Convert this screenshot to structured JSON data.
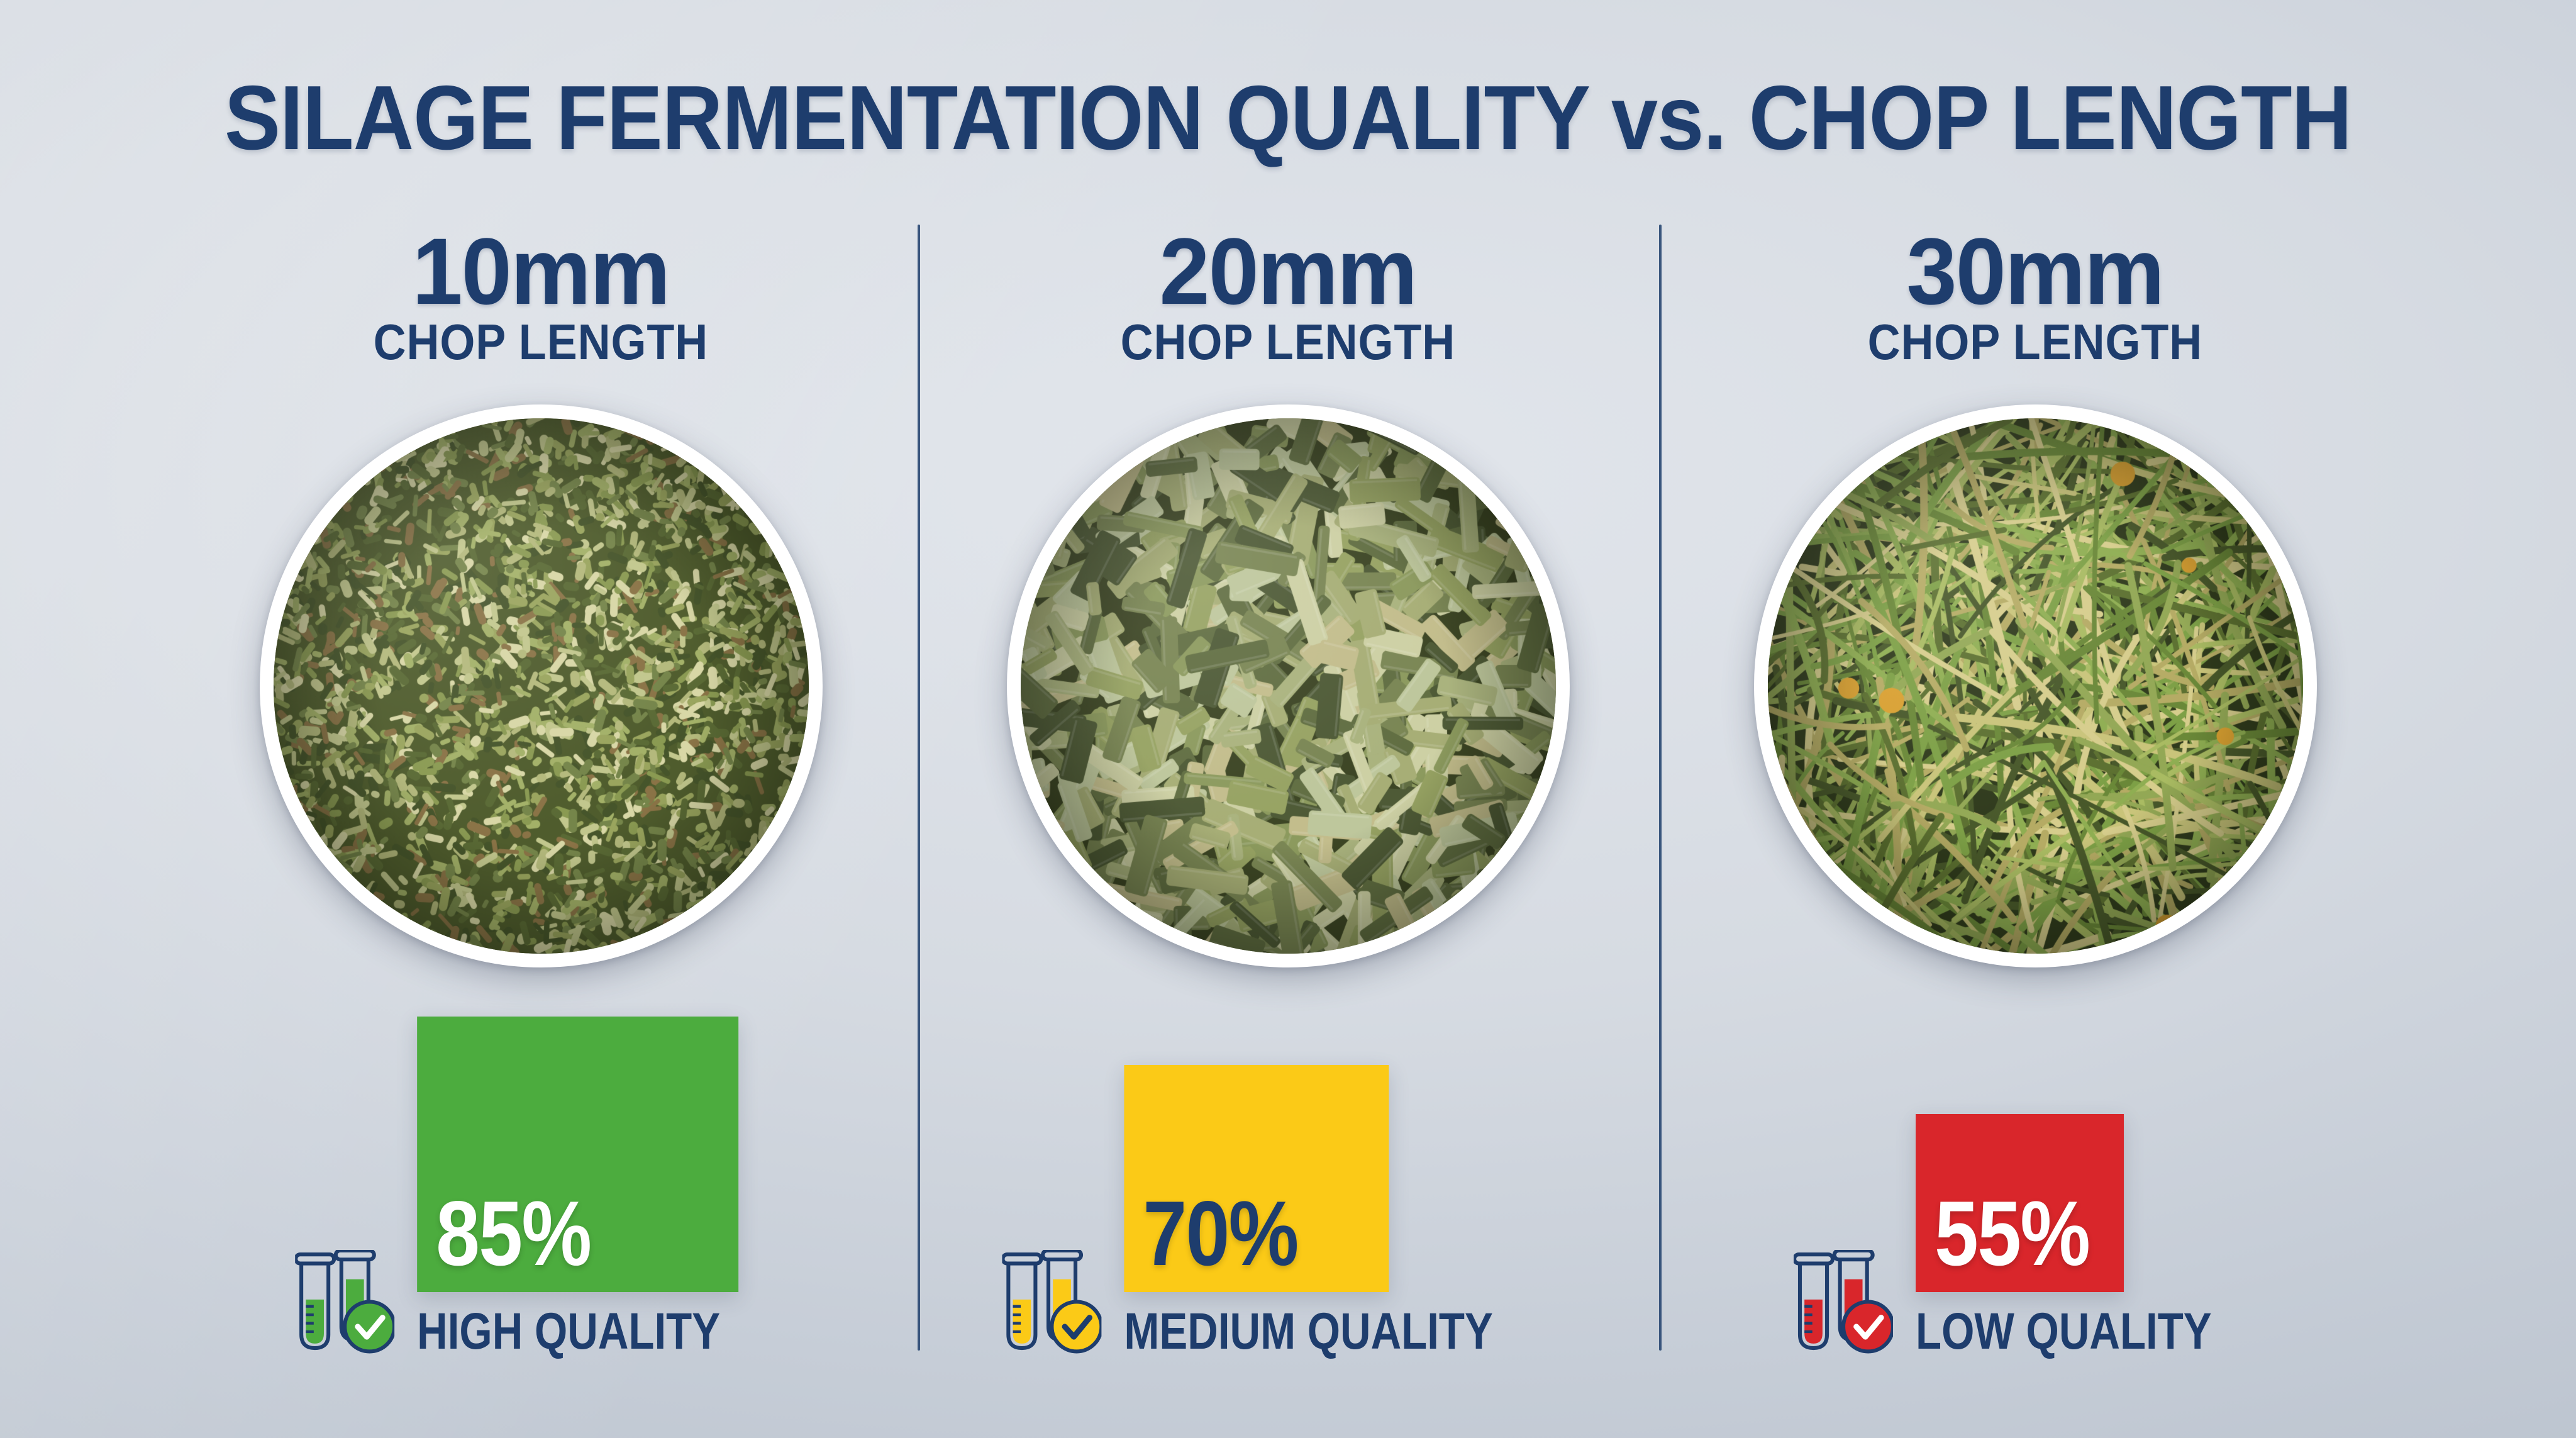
{
  "title": "SILAGE FERMENTATION QUALITY vs. CHOP LENGTH",
  "theme": {
    "navy": "#1e3d6d",
    "divider": "#2b4a74",
    "background_center": "#e2e6ec",
    "background_edge": "#b4bdc9",
    "circle_ring": "#ffffff"
  },
  "chart_data": {
    "type": "bar",
    "title": "SILAGE FERMENTATION QUALITY vs. CHOP LENGTH",
    "categories": [
      "10mm",
      "20mm",
      "30mm"
    ],
    "values": [
      85,
      70,
      55
    ],
    "unit": "%",
    "labels": [
      "HIGH QUALITY",
      "MEDIUM QUALITY",
      "LOW QUALITY"
    ],
    "bar_colors": [
      "#4cac3e",
      "#fbca17",
      "#d9262b"
    ],
    "ylim": [
      0,
      100
    ]
  },
  "columns": [
    {
      "chop_length": "10mm",
      "chop_caption": "CHOP LENGTH",
      "percent": 85,
      "percent_label": "85%",
      "quality_label": "HIGH QUALITY",
      "accent": "#4cac3e",
      "percent_text_color": "#ffffff",
      "check_color": "#ffffff",
      "photo": {
        "style": "fine",
        "base": "#4f5c2d",
        "palette": [
          "#8a9a52",
          "#a3b168",
          "#c2c78d",
          "#5a6a35",
          "#75854a",
          "#9aa55e",
          "#d8d7a6",
          "#8a7346",
          "#46552b",
          "#b4b97c"
        ]
      }
    },
    {
      "chop_length": "20mm",
      "chop_caption": "CHOP LENGTH",
      "percent": 70,
      "percent_label": "70%",
      "quality_label": "MEDIUM QUALITY",
      "accent": "#fbca17",
      "percent_text_color": "#1e3d6d",
      "check_color": "#1e3d6d",
      "photo": {
        "style": "chunks",
        "base": "#3c4524",
        "palette": [
          "#97a363",
          "#aab37e",
          "#bec79c",
          "#7a8654",
          "#616e42",
          "#cdd0a4",
          "#8c9a5e",
          "#c3bd8c",
          "#4e5a36",
          "#a7ae76"
        ]
      }
    },
    {
      "chop_length": "30mm",
      "chop_caption": "CHOP LENGTH",
      "percent": 55,
      "percent_label": "55%",
      "quality_label": "LOW QUALITY",
      "accent": "#d9262b",
      "percent_text_color": "#ffffff",
      "check_color": "#ffffff",
      "photo": {
        "style": "strands",
        "base": "#2f3a1c",
        "palette": [
          "#8fae52",
          "#7da046",
          "#a9bb62",
          "#c9c47a",
          "#6a8838",
          "#5c7030",
          "#b5ab64",
          "#93a855",
          "#d6cd8c",
          "#48582a"
        ],
        "kernel_color": "#d9a031"
      }
    }
  ]
}
